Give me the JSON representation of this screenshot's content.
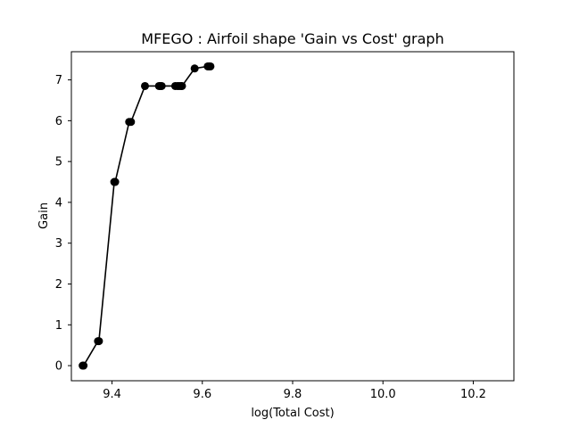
{
  "chart_data": {
    "type": "line",
    "title": "MFEGO : Airfoil shape 'Gain vs Cost' graph",
    "xlabel": "log(Total Cost)",
    "ylabel": "Gain",
    "xlim": [
      9.31,
      10.29
    ],
    "ylim": [
      -0.37,
      7.69
    ],
    "xticks": [
      "9.4",
      "9.6",
      "9.8",
      "10.0",
      "10.2"
    ],
    "yticks": [
      "0",
      "1",
      "2",
      "3",
      "4",
      "5",
      "6",
      "7"
    ],
    "grid": false,
    "series": [
      {
        "color": "#000000",
        "marker": "circle",
        "x": [
          9.335,
          9.337,
          9.369,
          9.371,
          9.405,
          9.407,
          9.438,
          9.442,
          9.473,
          9.504,
          9.507,
          9.51,
          9.54,
          9.545,
          9.549,
          9.553,
          9.555,
          9.583,
          9.612,
          9.615,
          9.618
        ],
        "y": [
          0.0,
          0.0,
          0.6,
          0.6,
          4.5,
          4.5,
          5.97,
          5.97,
          6.85,
          6.85,
          6.85,
          6.85,
          6.85,
          6.85,
          6.85,
          6.85,
          6.85,
          7.28,
          7.33,
          7.33,
          7.33
        ]
      }
    ]
  }
}
